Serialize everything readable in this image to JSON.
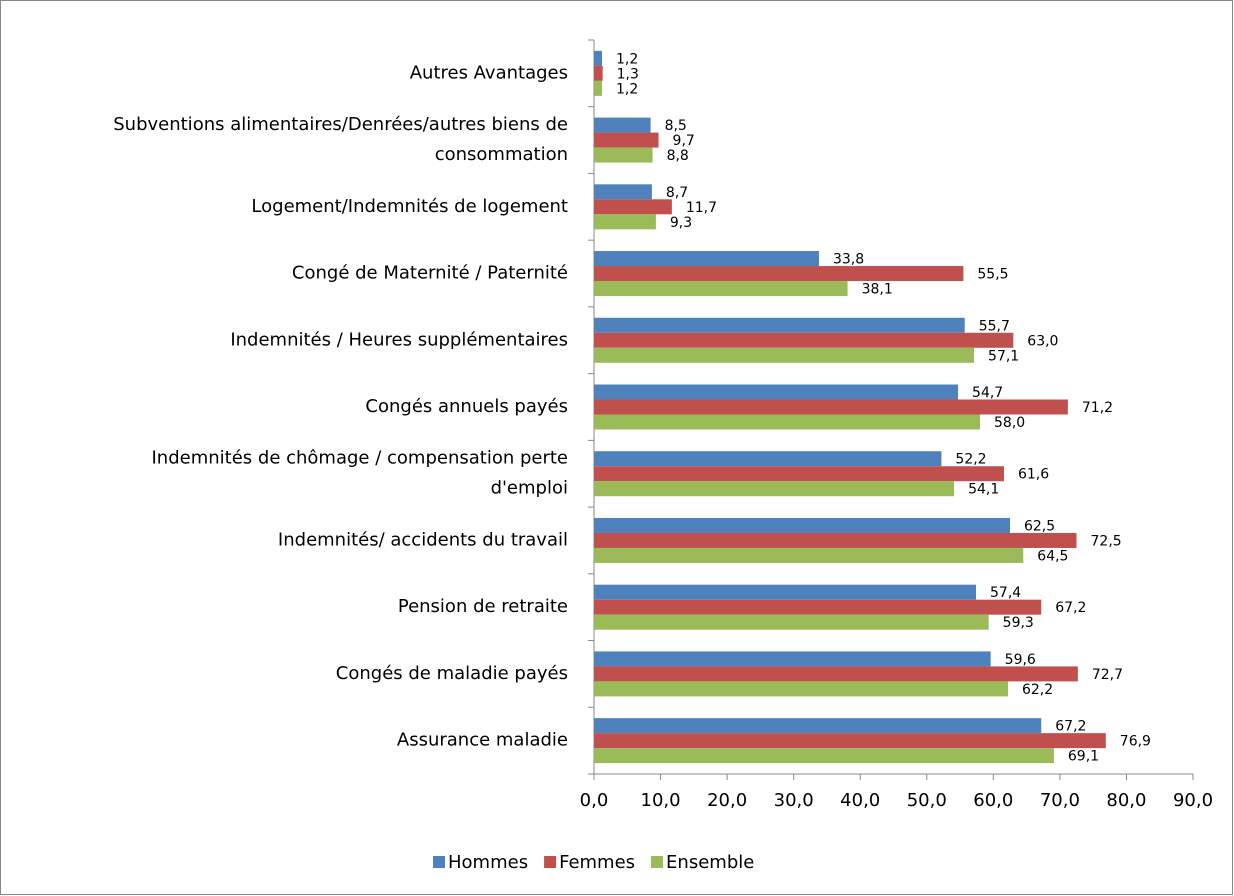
{
  "chart_data": {
    "type": "bar",
    "orientation": "horizontal",
    "categories": [
      "Autres Avantages",
      "Subventions alimentaires/Denrées/autres biens de\nconsommation",
      "Logement/Indemnités de logement",
      "Congé de Maternité / Paternité",
      "Indemnités / Heures supplémentaires",
      "Congés annuels payés",
      "Indemnités de chômage / compensation perte\nd'emploi",
      "Indemnités/ accidents du travail",
      "Pension de retraite",
      "Congés de maladie payés",
      "Assurance maladie"
    ],
    "series": [
      {
        "name": "Hommes",
        "color": "#4f81bd",
        "values": [
          1.2,
          8.5,
          8.7,
          33.8,
          55.7,
          54.7,
          52.2,
          62.5,
          57.4,
          59.6,
          67.2
        ],
        "value_labels": [
          "1,2",
          "8,5",
          "8,7",
          "33,8",
          "55,7",
          "54,7",
          "52,2",
          "62,5",
          "57,4",
          "59,6",
          "67,2"
        ]
      },
      {
        "name": "Femmes",
        "color": "#c0504d",
        "values": [
          1.3,
          9.7,
          11.7,
          55.5,
          63.0,
          71.2,
          61.6,
          72.5,
          67.2,
          72.7,
          76.9
        ],
        "value_labels": [
          "1,3",
          "9,7",
          "11,7",
          "55,5",
          "63,0",
          "71,2",
          "61,6",
          "72,5",
          "67,2",
          "72,7",
          "76,9"
        ]
      },
      {
        "name": "Ensemble",
        "color": "#9bbb59",
        "values": [
          1.2,
          8.8,
          9.3,
          38.1,
          57.1,
          58.0,
          54.1,
          64.5,
          59.3,
          62.2,
          69.1
        ],
        "value_labels": [
          "1,2",
          "8,8",
          "9,3",
          "38,1",
          "57,1",
          "58,0",
          "54,1",
          "64,5",
          "59,3",
          "62,2",
          "69,1"
        ]
      }
    ],
    "xlim": [
      0,
      90
    ],
    "xticks": [
      {
        "value": 0,
        "label": "0,0"
      },
      {
        "value": 10,
        "label": "10,0"
      },
      {
        "value": 20,
        "label": "20,0"
      },
      {
        "value": 30,
        "label": "30,0"
      },
      {
        "value": 40,
        "label": "40,0"
      },
      {
        "value": 50,
        "label": "50,0"
      },
      {
        "value": 60,
        "label": "60,0"
      },
      {
        "value": 70,
        "label": "70,0"
      },
      {
        "value": 80,
        "label": "80,0"
      },
      {
        "value": 90,
        "label": "90,0"
      }
    ],
    "grid": false,
    "legend": "bottom"
  }
}
